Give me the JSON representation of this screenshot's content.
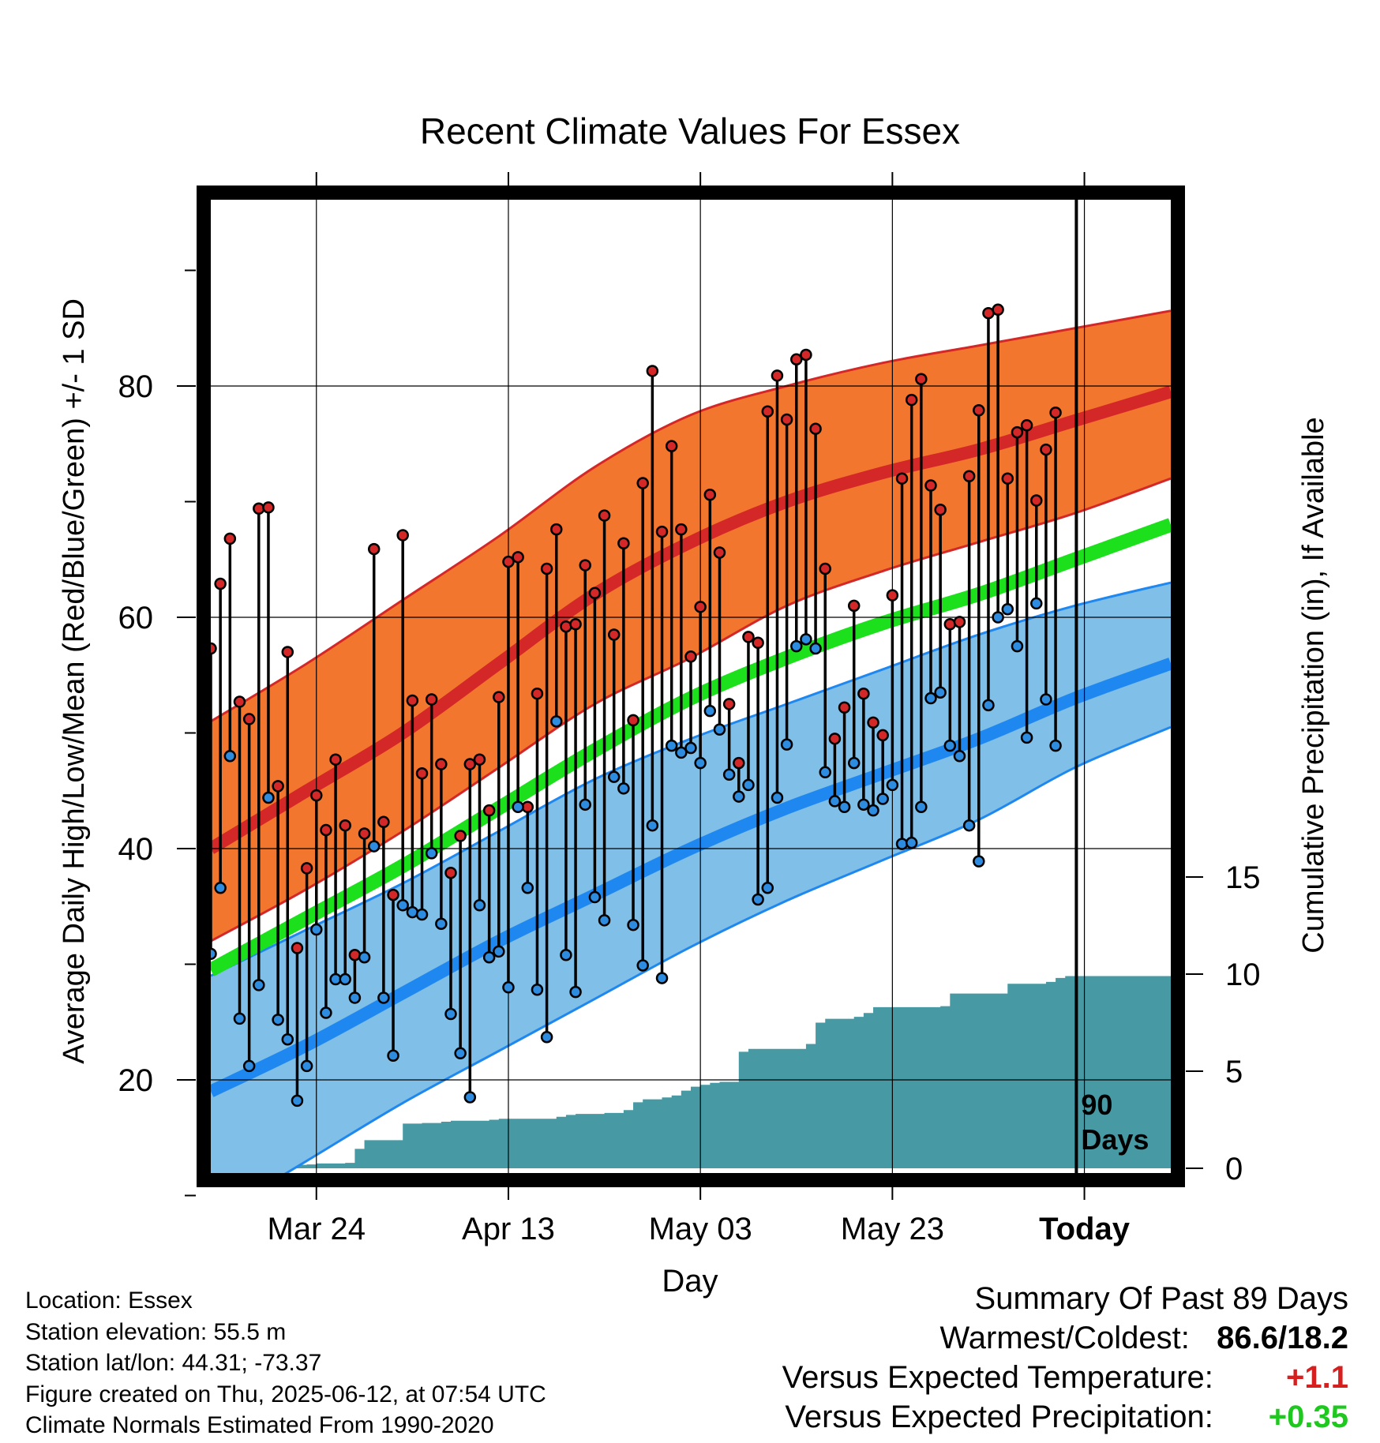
{
  "title": "Recent Climate Values For Essex",
  "chart_data": {
    "type": "line",
    "title": "Recent Climate Values For Essex",
    "xlabel": "Day",
    "ylabel_left": "Average Daily High/Low/Mean (Red/Blue/Green) +/- 1 SD",
    "ylabel_right": "Cumulative Precipitation (in), If Available",
    "x_tick_labels": [
      {
        "day": 11,
        "label": "Mar 24"
      },
      {
        "day": 31,
        "label": "Apr 13"
      },
      {
        "day": 51,
        "label": "May 03"
      },
      {
        "day": 71,
        "label": "May 23"
      },
      {
        "day": 91,
        "label": "Today"
      }
    ],
    "y_left_ticks": [
      "20",
      "40",
      "60",
      "80"
    ],
    "y_left_range": [
      8,
      92
    ],
    "y_right_ticks": [
      "0",
      "5",
      "10",
      "15"
    ],
    "y_right_range": [
      0,
      18
    ],
    "x_range": [
      0,
      100
    ],
    "today_day": 90,
    "today_label": "90\nDays",
    "grid": true,
    "normals": {
      "days": [
        0,
        10,
        20,
        30,
        40,
        50,
        60,
        70,
        80,
        90,
        100
      ],
      "high_mean": [
        40,
        45,
        50,
        56,
        62,
        66.5,
        70,
        72.5,
        74.5,
        77,
        79.5
      ],
      "high_sd_upper": [
        51,
        56,
        61.5,
        67,
        73,
        77.5,
        80,
        82,
        83.5,
        85,
        86.5
      ],
      "high_sd_lower": [
        32,
        36.5,
        41.5,
        47,
        52.5,
        56.5,
        61,
        64,
        66.5,
        69,
        72
      ],
      "low_mean": [
        19,
        23,
        27.5,
        32,
        36,
        40,
        43.5,
        46.5,
        49.5,
        53,
        56
      ],
      "low_sd_upper": [
        29,
        33,
        37,
        41.5,
        46,
        49.5,
        52.5,
        55.5,
        58.5,
        61,
        63
      ],
      "low_sd_lower": [
        8,
        13,
        18,
        22.5,
        27,
        31.5,
        35.5,
        39,
        42.5,
        47,
        50.5
      ],
      "avg_mean": [
        29.5,
        34,
        38.5,
        43.5,
        48.5,
        53,
        56.5,
        59.5,
        62,
        65,
        68
      ]
    },
    "daily_high": [
      57.3,
      62.9,
      66.8,
      52.7,
      51.2,
      69.4,
      69.5,
      45.4,
      57.0,
      31.4,
      38.3,
      44.6,
      41.6,
      47.7,
      42.0,
      30.8,
      41.3,
      65.9,
      42.3,
      36.0,
      67.1,
      52.8,
      46.5,
      52.9,
      47.3,
      37.9,
      41.1,
      47.3,
      47.7,
      43.3,
      53.1,
      64.8,
      65.2,
      43.6,
      53.4,
      64.2,
      67.6,
      59.2,
      59.4,
      64.5,
      62.1,
      68.8,
      58.5,
      66.4,
      51.1,
      71.6,
      81.3,
      67.4,
      74.8,
      67.6,
      56.6,
      60.9,
      70.6,
      65.6,
      52.5,
      47.4,
      58.3,
      57.8,
      77.8,
      80.9,
      77.1,
      82.3,
      82.7,
      76.3,
      64.2,
      49.5,
      52.2,
      61.0,
      53.4,
      50.9,
      49.8,
      61.9,
      72.0,
      78.8,
      80.6,
      71.4,
      69.3,
      59.4,
      59.6,
      72.2,
      77.9,
      86.3,
      86.6,
      72.0,
      76.0,
      76.6,
      70.1,
      74.5,
      77.7
    ],
    "daily_low": [
      30.9,
      36.6,
      48.0,
      25.3,
      21.2,
      28.2,
      44.4,
      25.2,
      23.5,
      18.2,
      21.2,
      33.0,
      25.8,
      28.7,
      28.7,
      27.1,
      30.6,
      40.2,
      27.1,
      22.1,
      35.1,
      34.5,
      34.3,
      39.6,
      33.5,
      25.7,
      22.3,
      18.5,
      35.1,
      30.6,
      31.1,
      28.0,
      43.6,
      36.6,
      27.8,
      23.7,
      51.0,
      30.8,
      27.6,
      43.8,
      35.8,
      33.8,
      46.2,
      45.2,
      33.4,
      29.9,
      42.0,
      28.8,
      48.9,
      48.3,
      48.7,
      47.4,
      51.9,
      50.3,
      46.4,
      44.5,
      45.5,
      35.6,
      36.6,
      44.4,
      49.0,
      57.5,
      58.1,
      57.3,
      46.6,
      44.1,
      43.6,
      47.4,
      43.8,
      43.3,
      44.3,
      45.5,
      40.4,
      40.5,
      43.6,
      53.0,
      53.5,
      48.9,
      48.0,
      42.0,
      38.9,
      52.4,
      60.0,
      60.7,
      57.5,
      49.6,
      61.2,
      52.9,
      48.9
    ],
    "cumulative_precip": [
      0,
      0,
      0,
      0,
      0,
      0,
      0,
      0.08,
      0.14,
      0.18,
      0.2,
      0.25,
      0.25,
      0.25,
      0.28,
      1.0,
      1.45,
      1.45,
      1.45,
      1.45,
      2.3,
      2.3,
      2.33,
      2.33,
      2.4,
      2.45,
      2.45,
      2.45,
      2.45,
      2.5,
      2.55,
      2.55,
      2.55,
      2.55,
      2.55,
      2.55,
      2.65,
      2.75,
      2.8,
      2.8,
      2.8,
      2.85,
      2.85,
      3.0,
      3.4,
      3.55,
      3.55,
      3.65,
      3.75,
      4.0,
      4.2,
      4.3,
      4.4,
      4.45,
      4.45,
      6.0,
      6.15,
      6.15,
      6.15,
      6.15,
      6.15,
      6.15,
      6.4,
      7.5,
      7.7,
      7.7,
      7.7,
      7.8,
      8.0,
      8.3,
      8.3,
      8.3,
      8.3,
      8.3,
      8.3,
      8.3,
      8.35,
      9.0,
      9.0,
      9.0,
      9.0,
      9.0,
      9.0,
      9.5,
      9.5,
      9.5,
      9.5,
      9.6,
      9.8,
      9.9,
      9.9,
      9.9,
      9.9,
      9.9,
      9.9,
      9.9,
      9.9,
      9.9,
      9.9,
      9.9
    ]
  },
  "colors": {
    "high_band": "#f3762f",
    "high_line": "#d42828",
    "low_band": "#80bfe8",
    "low_line": "#1f88f0",
    "mean_line": "#1de01d",
    "precip_fill": "#479aa4",
    "high_marker": "#d42828",
    "low_marker": "#2e8ce0"
  },
  "station_info": [
    "Location: Essex",
    "Station elevation: 55.5 m",
    "Station lat/lon: 44.31; -73.37",
    "Figure created on Thu, 2025-06-12, at 07:54 UTC",
    "Climate Normals Estimated From 1990-2020"
  ],
  "summary": {
    "heading": "Summary Of Past 89 Days",
    "warmest_coldest_label": "Warmest/Coldest:",
    "warmest_coldest_value": "86.6/18.2",
    "temp_label": "Versus Expected Temperature:",
    "temp_value": "+1.1",
    "precip_label": "Versus Expected Precipitation:",
    "precip_value": "+0.35"
  }
}
